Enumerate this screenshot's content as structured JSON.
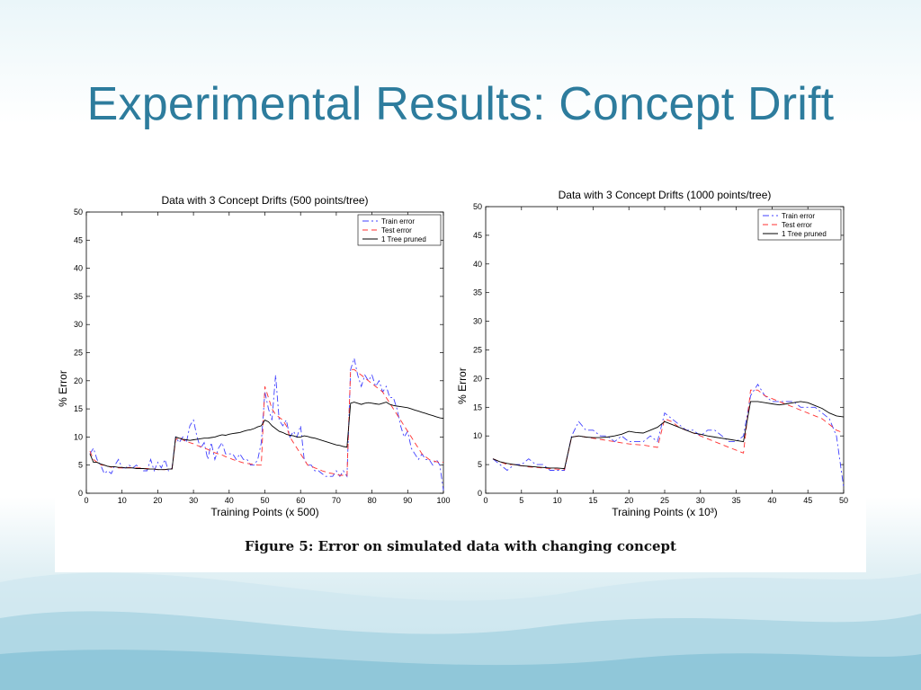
{
  "slide": {
    "title": "Experimental Results: Concept Drift",
    "caption": "Figure 5: Error on simulated data with changing concept"
  },
  "colors": {
    "title": "#2d7c9d",
    "train": "#4040ff",
    "test": "#ff3030",
    "pruned": "#000000"
  },
  "chart_data": [
    {
      "type": "line",
      "title": "Data with 3 Concept Drifts (500 points/tree)",
      "xlabel": "Training Points (x 500)",
      "ylabel": "% Error",
      "xlim": [
        0,
        100
      ],
      "ylim": [
        0,
        50
      ],
      "xticks": [
        0,
        10,
        20,
        30,
        40,
        50,
        60,
        70,
        80,
        90,
        100
      ],
      "yticks": [
        0,
        5,
        10,
        15,
        20,
        25,
        30,
        35,
        40,
        45,
        50
      ],
      "legend_position": "top-right",
      "series": [
        {
          "name": "Train error",
          "style": "dashdot",
          "x": [
            1,
            2,
            3,
            4,
            5,
            6,
            7,
            8,
            9,
            10,
            11,
            12,
            13,
            14,
            15,
            16,
            17,
            18,
            19,
            20,
            21,
            22,
            23,
            24,
            25,
            26,
            27,
            28,
            29,
            30,
            31,
            32,
            33,
            34,
            35,
            36,
            37,
            38,
            39,
            40,
            41,
            42,
            43,
            44,
            45,
            46,
            47,
            48,
            49,
            50,
            51,
            52,
            53,
            54,
            55,
            56,
            57,
            58,
            59,
            60,
            61,
            62,
            63,
            64,
            65,
            66,
            67,
            68,
            69,
            70,
            71,
            72,
            73,
            74,
            75,
            76,
            77,
            78,
            79,
            80,
            81,
            82,
            83,
            84,
            85,
            86,
            87,
            88,
            89,
            90,
            91,
            92,
            93,
            94,
            95,
            96,
            97,
            98,
            99,
            100
          ],
          "y": [
            7,
            8,
            6,
            5,
            3.5,
            4,
            3.5,
            5,
            6,
            4.5,
            4.5,
            5,
            4.5,
            5,
            4.5,
            4,
            4,
            6,
            4,
            5.5,
            4.5,
            6,
            4,
            4.5,
            10,
            9,
            10,
            9,
            12,
            13,
            10,
            8,
            9,
            6,
            9,
            6,
            8,
            9,
            7,
            7,
            7,
            6,
            7,
            6,
            6,
            5,
            5,
            6,
            9,
            18,
            15,
            13,
            21,
            13,
            12,
            13,
            10,
            11,
            10,
            12,
            6,
            5,
            5,
            4,
            4,
            3.5,
            3,
            3,
            3,
            4,
            3,
            4,
            3,
            22,
            24,
            21,
            19,
            21,
            20,
            21,
            19,
            20,
            18,
            19,
            17,
            17,
            15,
            12,
            10,
            11,
            8,
            7,
            6,
            7,
            6,
            6,
            5,
            6,
            5,
            0.5
          ]
        },
        {
          "name": "Test error",
          "style": "dashed",
          "x": [
            1,
            2,
            3,
            4,
            5,
            6,
            7,
            8,
            9,
            10,
            11,
            12,
            13,
            14,
            15,
            16,
            17,
            18,
            19,
            20,
            21,
            22,
            23,
            24,
            25,
            26,
            27,
            28,
            29,
            30,
            31,
            32,
            33,
            34,
            35,
            36,
            37,
            38,
            39,
            40,
            41,
            42,
            43,
            44,
            45,
            46,
            47,
            48,
            49,
            50,
            51,
            52,
            53,
            54,
            55,
            56,
            57,
            58,
            59,
            60,
            61,
            62,
            63,
            64,
            65,
            66,
            67,
            68,
            69,
            70,
            71,
            72,
            73,
            74,
            75,
            76,
            77,
            78,
            79,
            80,
            81,
            82,
            83,
            84,
            85,
            86,
            87,
            88,
            89,
            90,
            91,
            92,
            93,
            94,
            95,
            96,
            97,
            98,
            99,
            100
          ],
          "y": [
            7.5,
            6,
            5.5,
            5,
            5,
            4.8,
            4.6,
            4.8,
            4.5,
            4.5,
            4.5,
            4.6,
            4.5,
            4.5,
            4.5,
            4.4,
            4.4,
            4.3,
            4.3,
            4.2,
            4.2,
            4.2,
            4.3,
            4.4,
            9.5,
            10,
            9.5,
            9.2,
            9,
            8.8,
            8.5,
            8.3,
            8,
            7.8,
            7.5,
            7.2,
            7,
            6.8,
            6.5,
            6.3,
            6,
            5.8,
            5.6,
            5.4,
            5.3,
            5.2,
            5.1,
            5,
            5,
            19,
            17,
            15,
            14,
            13.5,
            13,
            12,
            10,
            9,
            8,
            7,
            6,
            5,
            4.8,
            4.5,
            4.3,
            4,
            3.8,
            3.6,
            3.5,
            3.3,
            3.2,
            3.2,
            3.1,
            22,
            22,
            21.5,
            21,
            20.5,
            20,
            19.5,
            19,
            18.5,
            18,
            17,
            16,
            15,
            14,
            13,
            12,
            11,
            10,
            9,
            8,
            7,
            6.5,
            6,
            5.8,
            5.6,
            5.5,
            5.5
          ]
        },
        {
          "name": "1 Tree pruned",
          "style": "solid",
          "x": [
            1,
            2,
            3,
            4,
            5,
            6,
            7,
            8,
            9,
            10,
            11,
            12,
            13,
            14,
            15,
            16,
            17,
            18,
            19,
            20,
            21,
            22,
            23,
            24,
            25,
            26,
            27,
            28,
            29,
            30,
            31,
            32,
            33,
            34,
            35,
            36,
            37,
            38,
            39,
            40,
            41,
            42,
            43,
            44,
            45,
            46,
            47,
            48,
            49,
            50,
            51,
            52,
            53,
            54,
            55,
            56,
            57,
            58,
            59,
            60,
            61,
            62,
            63,
            64,
            65,
            66,
            67,
            68,
            69,
            70,
            71,
            72,
            73,
            74,
            75,
            76,
            77,
            78,
            79,
            80,
            81,
            82,
            83,
            84,
            85,
            86,
            87,
            88,
            89,
            90,
            91,
            92,
            93,
            94,
            95,
            96,
            97,
            98,
            99,
            100
          ],
          "y": [
            7,
            5.5,
            5.5,
            5.2,
            5,
            4.8,
            4.7,
            4.7,
            4.6,
            4.6,
            4.5,
            4.5,
            4.5,
            4.4,
            4.4,
            4.4,
            4.3,
            4.3,
            4.3,
            4.2,
            4.2,
            4.2,
            4.3,
            4.3,
            10,
            9.8,
            9.6,
            9.5,
            9.4,
            9.5,
            9.6,
            9.7,
            9.8,
            9.8,
            9.9,
            10,
            10.2,
            10.4,
            10.3,
            10.5,
            10.6,
            10.7,
            10.8,
            11,
            11.2,
            11.3,
            11.5,
            11.8,
            12,
            13,
            12.7,
            12,
            11.5,
            11,
            10.8,
            10.5,
            10.3,
            10.2,
            10,
            10,
            10.2,
            10.1,
            9.9,
            9.8,
            9.6,
            9.4,
            9.2,
            9,
            8.8,
            8.6,
            8.5,
            8.3,
            8.2,
            16,
            16.2,
            16,
            15.8,
            16,
            16.1,
            16,
            15.9,
            15.8,
            16,
            16.2,
            15.8,
            15.6,
            15.5,
            15.4,
            15.3,
            15.2,
            15,
            14.8,
            14.6,
            14.4,
            14.2,
            14,
            13.8,
            13.6,
            13.4,
            13.3
          ]
        }
      ]
    },
    {
      "type": "line",
      "title": "Data with 3 Concept Drifts (1000 points/tree)",
      "xlabel": "Training Points (x 10³)",
      "ylabel": "% Error",
      "xlim": [
        0,
        50
      ],
      "ylim": [
        0,
        50
      ],
      "xticks": [
        0,
        5,
        10,
        15,
        20,
        25,
        30,
        35,
        40,
        45,
        50
      ],
      "yticks": [
        0,
        5,
        10,
        15,
        20,
        25,
        30,
        35,
        40,
        45,
        50
      ],
      "legend_position": "top-right",
      "series": [
        {
          "name": "Train error",
          "style": "dashdot",
          "x": [
            1,
            2,
            3,
            4,
            5,
            6,
            7,
            8,
            9,
            10,
            11,
            12,
            13,
            14,
            15,
            16,
            17,
            18,
            19,
            20,
            21,
            22,
            23,
            24,
            25,
            26,
            27,
            28,
            29,
            30,
            31,
            32,
            33,
            34,
            35,
            36,
            37,
            38,
            39,
            40,
            41,
            42,
            43,
            44,
            45,
            46,
            47,
            48,
            49,
            50
          ],
          "y": [
            6,
            5,
            4,
            5,
            5,
            6,
            5,
            5,
            4,
            4,
            4,
            10,
            12.5,
            11,
            11,
            10,
            10,
            9,
            10,
            9,
            9,
            9,
            10,
            9,
            14,
            13,
            12,
            11,
            11,
            10,
            11,
            11,
            10,
            9,
            9,
            10,
            17,
            19,
            17,
            16,
            16,
            16,
            16,
            15,
            15,
            15,
            14,
            13,
            10,
            1
          ]
        },
        {
          "name": "Test error",
          "style": "dashed",
          "x": [
            1,
            2,
            3,
            4,
            5,
            6,
            7,
            8,
            9,
            10,
            11,
            12,
            13,
            14,
            15,
            16,
            17,
            18,
            19,
            20,
            21,
            22,
            23,
            24,
            25,
            26,
            27,
            28,
            29,
            30,
            31,
            32,
            33,
            34,
            35,
            36,
            37,
            38,
            39,
            40,
            41,
            42,
            43,
            44,
            45,
            46,
            47,
            48,
            49,
            50
          ],
          "y": [
            6,
            5.5,
            5,
            5,
            4.8,
            4.6,
            4.5,
            4.4,
            4.3,
            4.2,
            4.1,
            9.8,
            10,
            9.8,
            9.6,
            9.4,
            9.2,
            9,
            8.8,
            8.6,
            8.5,
            8.4,
            8.2,
            8,
            13,
            12.5,
            11.5,
            11,
            10.5,
            10,
            9.5,
            9,
            8.5,
            8,
            7.5,
            7,
            18,
            18,
            17,
            16.5,
            16,
            15.5,
            15,
            14.5,
            14,
            13.5,
            13,
            12,
            11,
            10.5
          ]
        },
        {
          "name": "1 Tree pruned",
          "style": "solid",
          "x": [
            1,
            2,
            3,
            4,
            5,
            6,
            7,
            8,
            9,
            10,
            11,
            12,
            13,
            14,
            15,
            16,
            17,
            18,
            19,
            20,
            21,
            22,
            23,
            24,
            25,
            26,
            27,
            28,
            29,
            30,
            31,
            32,
            33,
            34,
            35,
            36,
            37,
            38,
            39,
            40,
            41,
            42,
            43,
            44,
            45,
            46,
            47,
            48,
            49,
            50
          ],
          "y": [
            6,
            5.5,
            5.2,
            5,
            4.8,
            4.7,
            4.6,
            4.5,
            4.4,
            4.4,
            4.3,
            9.8,
            10,
            9.8,
            9.7,
            9.7,
            9.8,
            10,
            10.3,
            10.8,
            10.6,
            10.5,
            11,
            11.5,
            12.5,
            12,
            11.5,
            11,
            10.5,
            10.3,
            10,
            9.8,
            9.6,
            9.4,
            9.2,
            9,
            16,
            16,
            15.8,
            15.6,
            15.4,
            15.6,
            15.8,
            16,
            15.8,
            15.3,
            14.8,
            14,
            13.5,
            13.3
          ]
        }
      ]
    }
  ]
}
